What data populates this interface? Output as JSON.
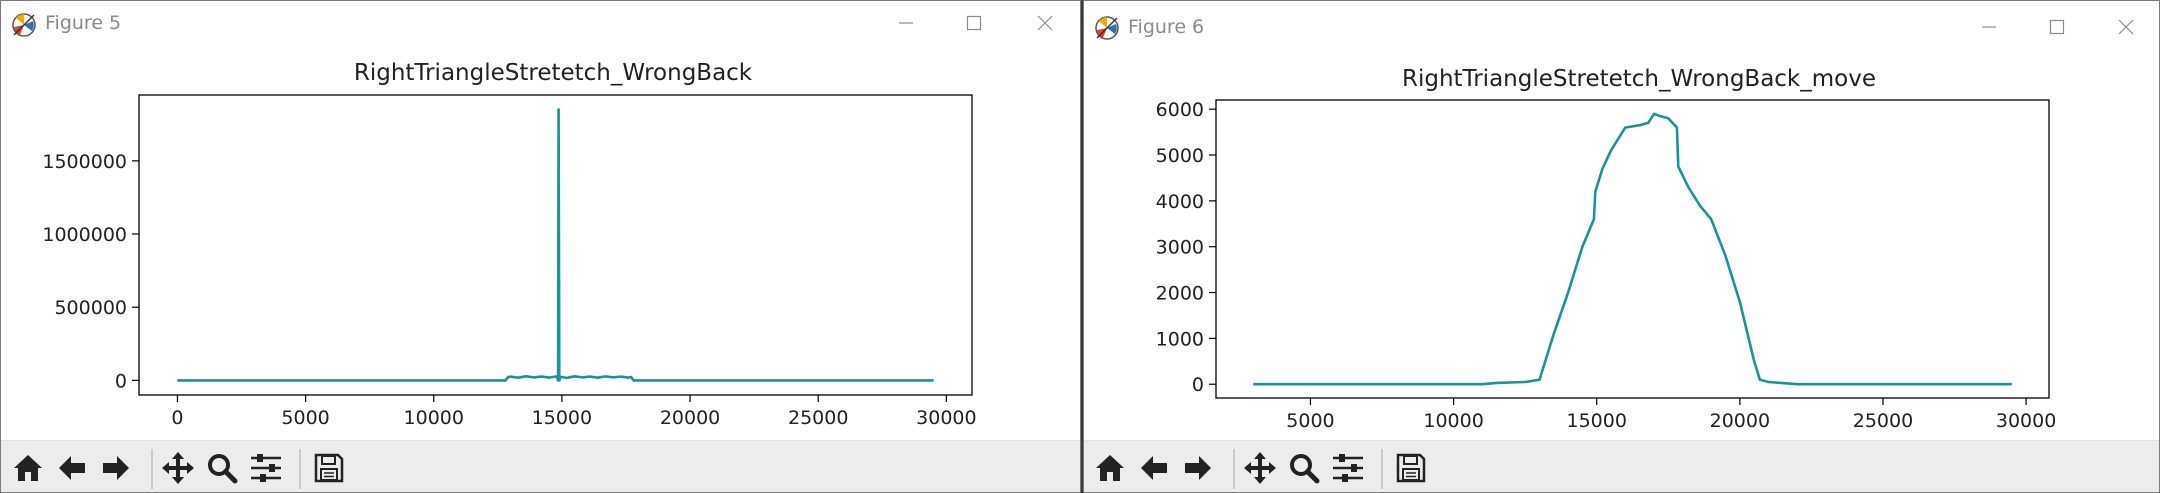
{
  "windows": [
    {
      "id": "fig5",
      "title": "Figure 5",
      "chart_title": "RightTriangleStretetch_WrongBack"
    },
    {
      "id": "fig6",
      "title": "Figure 6",
      "chart_title": "RightTriangleStretetch_WrongBack_move"
    }
  ],
  "colors": {
    "line": "#1a9494",
    "toolbar_bg": "#ececec",
    "title_text": "#8a8a8a"
  },
  "toolbar_icons": [
    "home-icon",
    "back-arrow-icon",
    "forward-arrow-icon",
    "pan-icon",
    "zoom-icon",
    "configure-subplots-icon",
    "save-icon"
  ],
  "chart_data": [
    {
      "type": "line",
      "title": "RightTriangleStretetch_WrongBack",
      "xlabel": "",
      "ylabel": "",
      "xlim": [
        -1500,
        31000
      ],
      "ylim": [
        -100000,
        1950000
      ],
      "x_ticks": [
        0,
        5000,
        10000,
        15000,
        20000,
        25000,
        30000
      ],
      "x_tick_labels": [
        "0",
        "5000",
        "10000",
        "15000",
        "20000",
        "25000",
        "30000"
      ],
      "y_ticks": [
        0,
        500000,
        1000000,
        1500000
      ],
      "y_tick_labels": [
        "0",
        "500000",
        "1000000",
        "1500000"
      ],
      "grid": false,
      "series": [
        {
          "x": [
            0,
            12800,
            12900,
            13000,
            13300,
            13600,
            13900,
            14200,
            14500,
            14800,
            14850,
            14870,
            14900,
            14950,
            15200,
            15500,
            15800,
            16100,
            16400,
            16700,
            17000,
            17300,
            17600,
            17700,
            17800,
            29500
          ],
          "y": [
            0,
            0,
            22000,
            25000,
            18000,
            28000,
            20000,
            26000,
            19000,
            27000,
            0,
            1850000,
            0,
            24000,
            17000,
            28000,
            20000,
            26000,
            18000,
            27000,
            21000,
            25000,
            19000,
            23000,
            0,
            0
          ]
        }
      ]
    },
    {
      "type": "line",
      "title": "RightTriangleStretetch_WrongBack_move",
      "xlabel": "",
      "ylabel": "",
      "xlim": [
        1700,
        30800
      ],
      "ylim": [
        -300,
        6200
      ],
      "x_ticks": [
        5000,
        10000,
        15000,
        20000,
        25000,
        30000
      ],
      "x_tick_labels": [
        "5000",
        "10000",
        "15000",
        "20000",
        "25000",
        "30000"
      ],
      "y_ticks": [
        0,
        1000,
        2000,
        3000,
        4000,
        5000,
        6000
      ],
      "y_tick_labels": [
        "0",
        "1000",
        "2000",
        "3000",
        "4000",
        "5000",
        "6000"
      ],
      "grid": false,
      "series": [
        {
          "x": [
            3000,
            11000,
            11500,
            12500,
            13000,
            13500,
            14000,
            14500,
            14900,
            14950,
            15200,
            15500,
            15800,
            16000,
            16200,
            16500,
            16800,
            17000,
            17200,
            17500,
            17800,
            17850,
            18200,
            18600,
            19000,
            19500,
            20000,
            20500,
            20700,
            21000,
            22000,
            25000,
            29500
          ],
          "y": [
            0,
            0,
            30,
            50,
            100,
            1100,
            2000,
            3000,
            3600,
            4200,
            4700,
            5100,
            5400,
            5600,
            5620,
            5650,
            5700,
            5900,
            5850,
            5800,
            5600,
            4750,
            4300,
            3900,
            3600,
            2800,
            1800,
            500,
            100,
            50,
            0,
            0,
            0
          ]
        }
      ]
    }
  ]
}
